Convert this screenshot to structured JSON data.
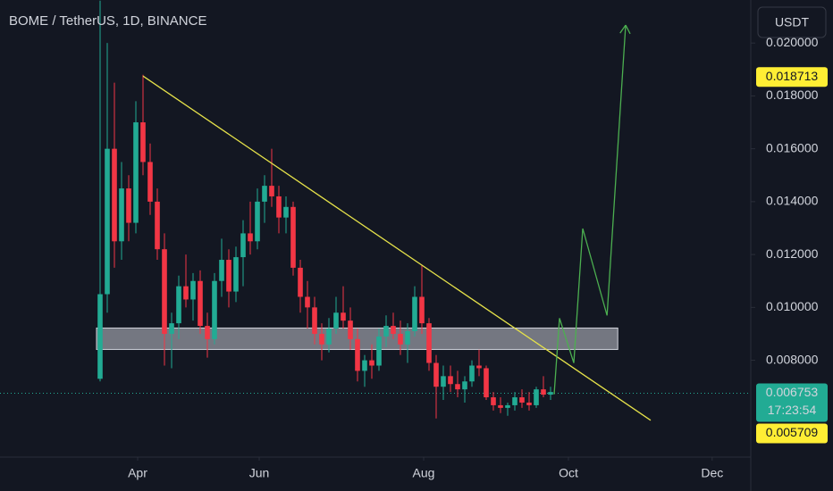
{
  "chart_data": {
    "type": "candlestick",
    "title": "BOME / TetherUS, 1D, BINANCE",
    "currency_button": "USDT",
    "up_color": "#22ab94",
    "down_color": "#f23645",
    "grid": false,
    "xlim": [
      -14,
      91
    ],
    "xticks": [
      {
        "value": 5.25,
        "label": "Apr"
      },
      {
        "value": 22.25,
        "label": "Jun"
      },
      {
        "value": 45.25,
        "label": "Aug"
      },
      {
        "value": 65.5,
        "label": "Oct"
      },
      {
        "value": 85.6,
        "label": "Dec"
      }
    ],
    "ylim": [
      0.004339,
      0.021627
    ],
    "yticks": [
      {
        "value": 0.008,
        "label": "0.008000"
      },
      {
        "value": 0.01,
        "label": "0.010000"
      },
      {
        "value": 0.012,
        "label": "0.012000"
      },
      {
        "value": 0.014,
        "label": "0.014000"
      },
      {
        "value": 0.016,
        "label": "0.016000"
      },
      {
        "value": 0.018,
        "label": "0.018000"
      },
      {
        "value": 0.02,
        "label": "0.020000"
      }
    ],
    "open": [
      0.0073,
      0.0105,
      0.016,
      0.0125,
      0.0145,
      0.0132,
      0.017,
      0.0155,
      0.014,
      0.0122,
      0.009,
      0.0094,
      0.0108,
      0.0103,
      0.011,
      0.0093,
      0.0088,
      0.011,
      0.0118,
      0.0106,
      0.0119,
      0.0128,
      0.0125,
      0.014,
      0.0146,
      0.0142,
      0.0134,
      0.0138,
      0.0115,
      0.0104,
      0.01,
      0.009,
      0.0086,
      0.0092,
      0.0098,
      0.0095,
      0.0088,
      0.0076,
      0.008,
      0.0078,
      0.0089,
      0.0093,
      0.009,
      0.0086,
      0.0091,
      0.0104,
      0.0094,
      0.0079,
      0.007,
      0.0074,
      0.0071,
      0.0069,
      0.0072,
      0.0078,
      0.0077,
      0.0066,
      0.0063,
      0.0062,
      0.0063,
      0.0066,
      0.0064,
      0.0063,
      0.0069,
      0.0067
    ],
    "high": [
      0.0216,
      0.02,
      0.0185,
      0.0155,
      0.015,
      0.0178,
      0.0188,
      0.0162,
      0.0145,
      0.0128,
      0.0098,
      0.0112,
      0.012,
      0.0113,
      0.0114,
      0.0098,
      0.0113,
      0.0126,
      0.0122,
      0.0123,
      0.0133,
      0.014,
      0.0145,
      0.015,
      0.016,
      0.0146,
      0.0142,
      0.014,
      0.0118,
      0.011,
      0.0104,
      0.0094,
      0.0096,
      0.0104,
      0.0108,
      0.01,
      0.0092,
      0.0082,
      0.0086,
      0.0092,
      0.0097,
      0.0098,
      0.0095,
      0.0094,
      0.0108,
      0.0116,
      0.0096,
      0.0082,
      0.0078,
      0.0078,
      0.0076,
      0.0074,
      0.008,
      0.0084,
      0.0078,
      0.0068,
      0.0066,
      0.0064,
      0.0068,
      0.0069,
      0.0068,
      0.007,
      0.0074,
      0.007
    ],
    "low": [
      0.0072,
      0.0098,
      0.0115,
      0.0118,
      0.0125,
      0.0128,
      0.015,
      0.0135,
      0.0118,
      0.0078,
      0.0077,
      0.0088,
      0.01,
      0.0095,
      0.009,
      0.0081,
      0.0086,
      0.0104,
      0.01,
      0.0102,
      0.0108,
      0.012,
      0.0122,
      0.0132,
      0.0138,
      0.0128,
      0.0128,
      0.0112,
      0.0098,
      0.0092,
      0.0086,
      0.008,
      0.0083,
      0.009,
      0.0092,
      0.0084,
      0.0072,
      0.007,
      0.0073,
      0.0076,
      0.0085,
      0.0088,
      0.0082,
      0.0079,
      0.0089,
      0.009,
      0.0076,
      0.0058,
      0.0065,
      0.0068,
      0.0066,
      0.0064,
      0.007,
      0.0074,
      0.0065,
      0.0061,
      0.006,
      0.0059,
      0.0061,
      0.0062,
      0.0061,
      0.0062,
      0.0066,
      0.0065
    ],
    "close": [
      0.0105,
      0.016,
      0.0125,
      0.0145,
      0.0132,
      0.017,
      0.0155,
      0.014,
      0.0122,
      0.009,
      0.0094,
      0.0108,
      0.0103,
      0.011,
      0.0093,
      0.0088,
      0.011,
      0.0118,
      0.0106,
      0.0119,
      0.0128,
      0.0125,
      0.014,
      0.0146,
      0.0142,
      0.0134,
      0.0138,
      0.0115,
      0.0104,
      0.01,
      0.009,
      0.0086,
      0.0092,
      0.0098,
      0.0095,
      0.0088,
      0.0076,
      0.008,
      0.0078,
      0.0089,
      0.0093,
      0.009,
      0.0086,
      0.0091,
      0.0104,
      0.0094,
      0.0079,
      0.007,
      0.0074,
      0.0071,
      0.0069,
      0.0072,
      0.0078,
      0.0077,
      0.0066,
      0.0063,
      0.0062,
      0.0063,
      0.0066,
      0.0064,
      0.0063,
      0.0069,
      0.0067,
      0.0068
    ],
    "zone": {
      "x": [
        -0.5,
        72.4
      ],
      "y": [
        0.00841,
        0.00922
      ]
    },
    "trendline": {
      "x": [
        6,
        77
      ],
      "y": [
        0.01875,
        0.00573
      ]
    },
    "projection": {
      "x": [
        63.5,
        64.25,
        66.25,
        67.5,
        70.9,
        73.5
      ],
      "y": [
        0.006712,
        0.009593,
        0.007898,
        0.012983,
        0.009695,
        0.020678
      ]
    },
    "high_marker": 0.018713,
    "last_price": 0.006753,
    "countdown": "17:23:54",
    "low_marker": 0.005709
  }
}
